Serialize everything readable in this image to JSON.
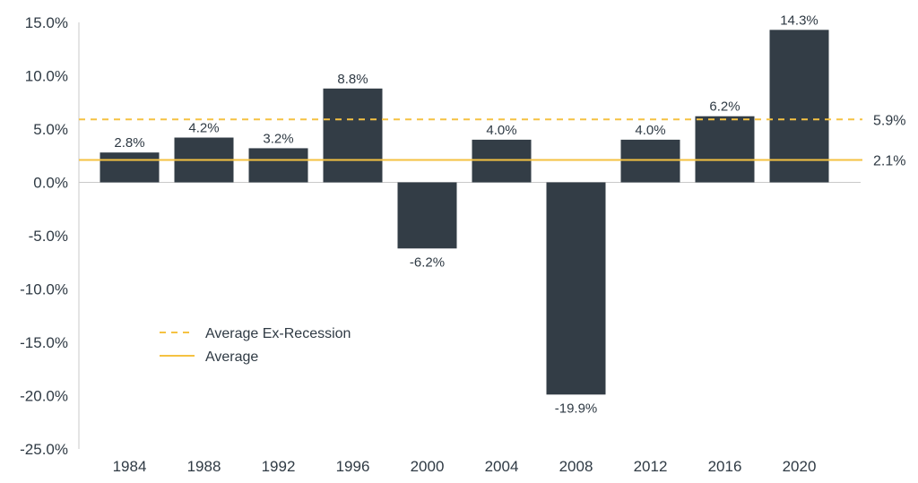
{
  "chart_data": {
    "type": "bar",
    "categories": [
      "1984",
      "1988",
      "1992",
      "1996",
      "2000",
      "2004",
      "2008",
      "2012",
      "2016",
      "2020"
    ],
    "values": [
      2.8,
      4.2,
      3.2,
      8.8,
      -6.2,
      4.0,
      -19.9,
      4.0,
      6.2,
      14.3
    ],
    "value_labels": [
      "2.8%",
      "4.2%",
      "3.2%",
      "8.8%",
      "-6.2%",
      "4.0%",
      "-19.9%",
      "4.0%",
      "6.2%",
      "14.3%"
    ],
    "ylim": [
      -25,
      15
    ],
    "yticks": [
      15,
      10,
      5,
      0,
      -5,
      -10,
      -15,
      -20,
      -25
    ],
    "ytick_labels": [
      "15.0%",
      "10.0%",
      "5.0%",
      "0.0%",
      "-5.0%",
      "-10.0%",
      "-15.0%",
      "-20.0%",
      "-25.0%"
    ],
    "reference_lines": [
      {
        "name": "Average Ex-Recession",
        "value": 5.9,
        "label": "5.9%",
        "style": "dashed",
        "color": "#f5c242"
      },
      {
        "name": "Average",
        "value": 2.1,
        "label": "2.1%",
        "style": "solid",
        "color": "#f5c242"
      }
    ],
    "legend": {
      "placement": "lower-left",
      "entries": [
        "Average Ex-Recession",
        "Average"
      ]
    },
    "bar_color": "#333d46",
    "grid": false
  }
}
